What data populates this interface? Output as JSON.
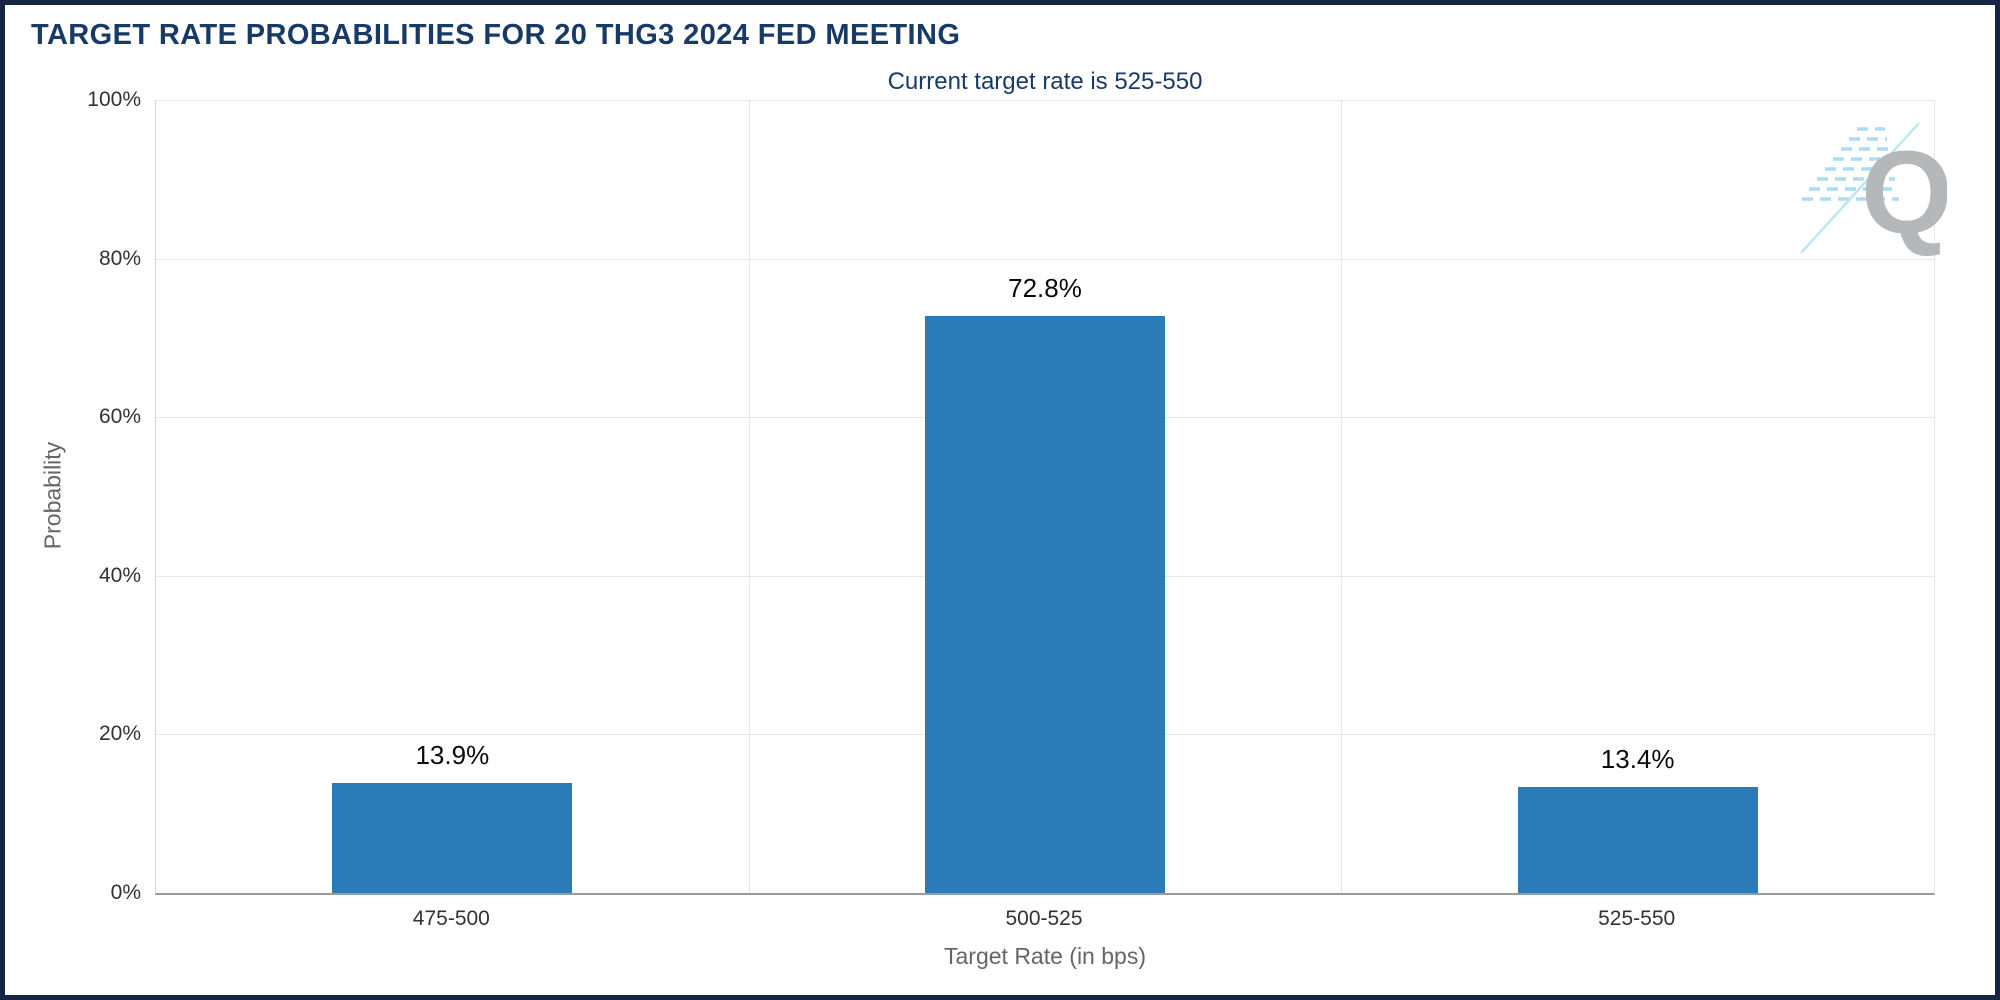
{
  "chart_data": {
    "type": "bar",
    "title": "TARGET RATE PROBABILITIES FOR 20 THG3 2024 FED MEETING",
    "subtitle": "Current target rate is 525-550",
    "categories": [
      "475-500",
      "500-525",
      "525-550"
    ],
    "values": [
      13.9,
      72.8,
      13.4
    ],
    "value_labels": [
      "13.9%",
      "72.8%",
      "13.4%"
    ],
    "xlabel": "Target Rate (in bps)",
    "ylabel": "Probability",
    "ylim": [
      0,
      100
    ],
    "ytick_values": [
      0,
      20,
      40,
      60,
      80,
      100
    ],
    "ytick_labels": [
      "0%",
      "20%",
      "40%",
      "60%",
      "80%",
      "100%"
    ],
    "grid": true,
    "legend": "none",
    "bar_color": "#2b7bb9"
  },
  "logo": {
    "letter": "Q"
  },
  "colors": {
    "title_text": "#183a68",
    "bar": "#2b7bb9",
    "frame_border": "#172544",
    "axis_title_text": "#666666",
    "tick_text": "#333333",
    "gridline": "#e6e6e6",
    "logo_stripes": "#aadcf2",
    "logo_letter": "#b5b8bb"
  }
}
